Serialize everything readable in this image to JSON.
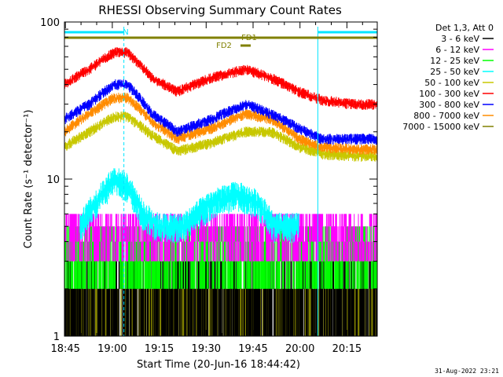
{
  "chart_data": {
    "type": "line",
    "title": "RHESSI Observing Summary Count Rates",
    "xlabel": "Start Time (20-Jun-16 18:44:42)",
    "ylabel": "Count Rate (s⁻¹ detector⁻¹)",
    "yscale": "log",
    "ylim": [
      1,
      100
    ],
    "xlim_minutes": [
      0,
      100
    ],
    "x_ticks": [
      "18:45",
      "19:00",
      "19:15",
      "19:30",
      "19:45",
      "20:00",
      "20:15"
    ],
    "y_ticks": [
      "1",
      "10",
      "100"
    ],
    "legend_title": "Det 1,3, Att 0",
    "legend_position": "right",
    "series": [
      {
        "name": "3 - 6 keV",
        "color": "#000000"
      },
      {
        "name": "6 - 12 keV",
        "color": "#ff00ff"
      },
      {
        "name": "12 - 25 keV",
        "color": "#00ff00"
      },
      {
        "name": "25 - 50 keV",
        "color": "#00ffff"
      },
      {
        "name": "50 - 100 keV",
        "color": "#c8c800"
      },
      {
        "name": "100 - 300 keV",
        "color": "#ff0000"
      },
      {
        "name": "300 - 800 keV",
        "color": "#0000ff"
      },
      {
        "name": "800 - 7000 keV",
        "color": "#ff8c00"
      },
      {
        "name": "7000 - 15000 keV",
        "color": "#808000"
      }
    ],
    "profiles": [
      {
        "series": "100 - 300 keV",
        "x": [
          0,
          8,
          16,
          20,
          28,
          36,
          47,
          58,
          66,
          75,
          82,
          92,
          100
        ],
        "y": [
          40,
          50,
          64,
          64,
          44,
          36,
          44,
          50,
          44,
          36,
          32,
          30,
          30
        ]
      },
      {
        "series": "300 - 800 keV",
        "x": [
          0,
          8,
          16,
          20,
          28,
          36,
          47,
          58,
          66,
          75,
          82,
          92,
          100
        ],
        "y": [
          24,
          30,
          40,
          40,
          26,
          20,
          24,
          30,
          26,
          21,
          18,
          18,
          18
        ]
      },
      {
        "series": "800 - 7000 keV",
        "x": [
          0,
          8,
          16,
          20,
          28,
          36,
          47,
          58,
          66,
          75,
          82,
          92,
          100
        ],
        "y": [
          20,
          26,
          33,
          33,
          23,
          18,
          21,
          26,
          24,
          18,
          16,
          15.5,
          15.5
        ]
      },
      {
        "series": "50 - 100 keV",
        "x": [
          0,
          8,
          16,
          20,
          28,
          36,
          47,
          58,
          66,
          75,
          82,
          92,
          100
        ],
        "y": [
          16,
          20,
          25,
          25,
          19,
          15,
          17,
          20,
          20,
          16,
          14.5,
          14,
          14
        ]
      },
      {
        "series": "25 - 50 keV",
        "x": [
          5,
          10,
          16,
          20,
          25,
          30,
          38,
          47,
          55,
          62,
          67,
          75
        ],
        "y": [
          5,
          7,
          10,
          9,
          6,
          5,
          5,
          7,
          8,
          7,
          5,
          5
        ]
      }
    ],
    "annotations": [
      {
        "text": "N",
        "color": "#00e5ff"
      },
      {
        "text": "FD1",
        "color": "#808000"
      },
      {
        "text": "FD2",
        "color": "#808000"
      }
    ],
    "intervals": [
      {
        "label": "night",
        "start_min": 0,
        "end_min": 19
      },
      {
        "label": "night",
        "start_min": 81,
        "end_min": 100
      },
      {
        "label": "attenuator-state",
        "start_min": 0,
        "end_min": 100
      }
    ],
    "vertical_markers_min": [
      0,
      19,
      81,
      100
    ],
    "timestamp": "31-Aug-2022 23:21"
  }
}
